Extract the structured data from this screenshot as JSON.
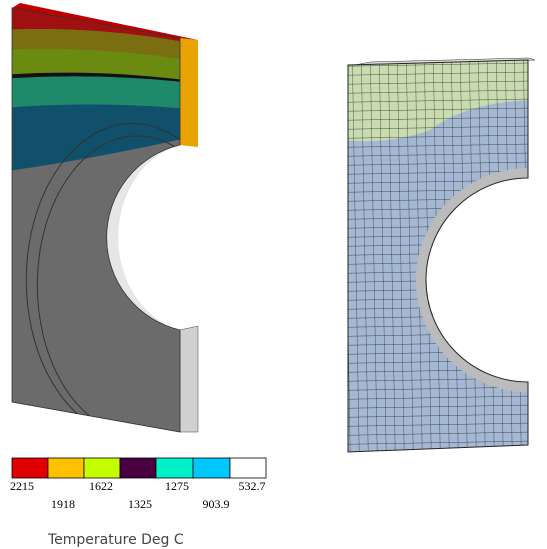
{
  "legend": {
    "title": "Temperature Deg C",
    "labels": [
      "2215",
      "1918",
      "1622",
      "1325",
      "1275",
      "903.9",
      "532.7"
    ]
  }
}
